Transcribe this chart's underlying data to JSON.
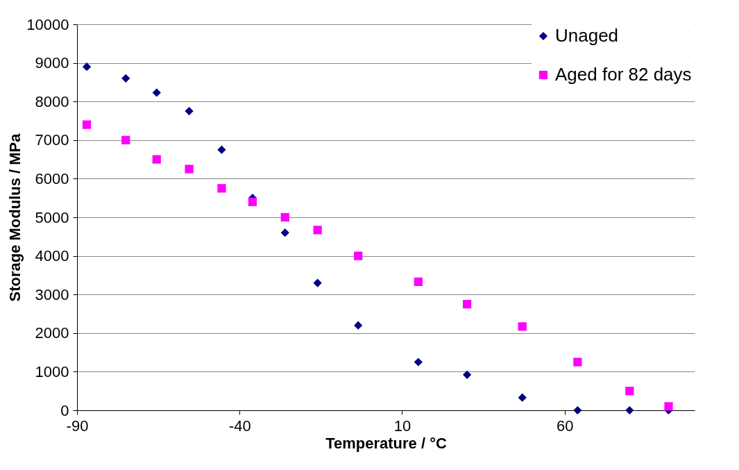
{
  "chart_data": {
    "type": "scatter",
    "xlabel": "Temperature / °C",
    "ylabel": "Storage Modulus / MPa",
    "x": [
      -87,
      -75,
      -65.5,
      -55.5,
      -45.5,
      -36,
      -26,
      -16,
      -3.5,
      15,
      30,
      47,
      64,
      80,
      92
    ],
    "series": [
      {
        "name": "Unaged",
        "color": "#000080",
        "marker": "diamond",
        "values": [
          8900,
          8600,
          8230,
          7750,
          6750,
          5500,
          4600,
          3300,
          2200,
          1250,
          920,
          330,
          0,
          0,
          0
        ]
      },
      {
        "name": "Aged for 82 days",
        "color": "#ff00ff",
        "marker": "square",
        "values": [
          7400,
          7000,
          6500,
          6250,
          5750,
          5400,
          5000,
          4670,
          4000,
          3330,
          2750,
          2170,
          1250,
          500,
          100
        ]
      }
    ],
    "xlim": [
      -90,
      100
    ],
    "xticks": [
      -90,
      -40,
      10,
      60
    ],
    "ylim": [
      0,
      10000
    ],
    "yticks": [
      0,
      1000,
      2000,
      3000,
      4000,
      5000,
      6000,
      7000,
      8000,
      9000,
      10000
    ],
    "grid": "y",
    "legend": "top right"
  }
}
